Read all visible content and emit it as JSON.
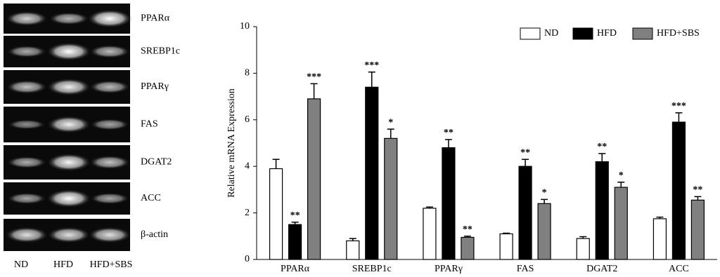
{
  "gel": {
    "genes": [
      "PPARα",
      "SREBP1c",
      "PPARγ",
      "FAS",
      "DGAT2",
      "ACC",
      "β-actin"
    ],
    "lanes": [
      "ND",
      "HFD",
      "HFD+SBS"
    ]
  },
  "chart_data": {
    "type": "bar",
    "y_label": "Relative mRNA Expression",
    "categories": [
      "PPARα",
      "SREBP1c",
      "PPARγ",
      "FAS",
      "DGAT2",
      "ACC"
    ],
    "series": [
      {
        "name": "ND",
        "color": "#ffffff",
        "values": [
          3.9,
          0.8,
          2.2,
          1.1,
          0.9,
          1.75
        ],
        "errors": [
          0.4,
          0.1,
          0.05,
          0.03,
          0.08,
          0.07
        ]
      },
      {
        "name": "HFD",
        "color": "#000000",
        "values": [
          1.5,
          7.4,
          4.8,
          4.0,
          4.2,
          5.9
        ],
        "errors": [
          0.1,
          0.65,
          0.35,
          0.3,
          0.35,
          0.4
        ],
        "stars": [
          "**",
          "***",
          "**",
          "**",
          "**",
          "***"
        ]
      },
      {
        "name": "HFD+SBS",
        "color": "#808080",
        "values": [
          6.9,
          5.2,
          0.95,
          2.4,
          3.1,
          2.55
        ],
        "errors": [
          0.65,
          0.4,
          0.05,
          0.18,
          0.22,
          0.15
        ],
        "stars": [
          "***",
          "*",
          "**",
          "*",
          "*",
          "**"
        ]
      }
    ],
    "ylim": [
      0,
      10
    ],
    "yticks": [
      0,
      2,
      4,
      6,
      8,
      10
    ],
    "grid": false,
    "legend": "top-right"
  }
}
